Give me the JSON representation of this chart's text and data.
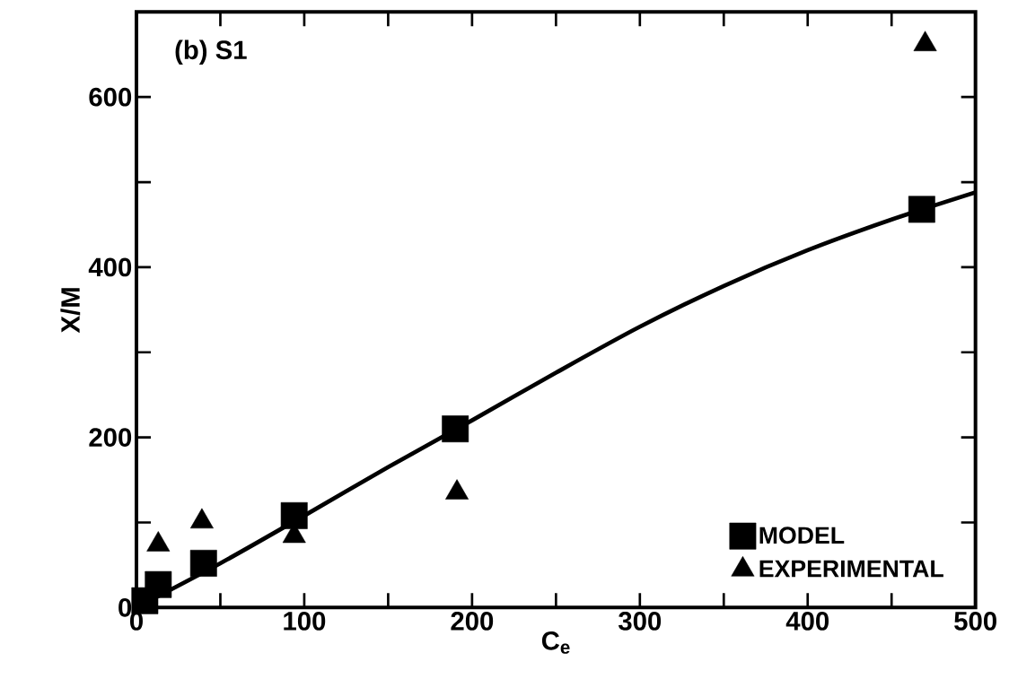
{
  "chart_data": {
    "type": "scatter",
    "title": "(b) S1",
    "xlabel": "C$_{e}$",
    "ylabel": "X/M",
    "xlim": [
      0,
      500
    ],
    "ylim": [
      0,
      700
    ],
    "xticks": [
      0,
      {
        "value": 50,
        "label": null
      },
      100,
      {
        "value": 150,
        "label": null
      },
      200,
      {
        "value": 250,
        "label": null
      },
      300,
      {
        "value": 350,
        "label": null
      },
      400,
      {
        "value": 450,
        "label": null
      },
      500
    ],
    "yticks": [
      0,
      {
        "value": 100,
        "label": null
      },
      200,
      {
        "value": 300,
        "label": null
      },
      400,
      {
        "value": 500,
        "label": null
      },
      600
    ],
    "grid": false,
    "legend": "bottom right",
    "series": [
      {
        "name": "MODEL",
        "color": "#000000",
        "marker": "square",
        "x": [
          5,
          13,
          40,
          94,
          190,
          468
        ],
        "values": [
          8,
          27,
          52,
          108,
          210,
          468
        ]
      },
      {
        "name": "EXPERIMENTAL",
        "color": "#000000",
        "marker": "triangle",
        "x": [
          13,
          39,
          94,
          191,
          470
        ],
        "values": [
          74,
          101,
          84,
          135,
          662
        ]
      },
      {
        "type": "line",
        "color": "#000000",
        "line_style": "solid",
        "marker": "none",
        "x": [
          0,
          50,
          100,
          150,
          200,
          250,
          300,
          350,
          400,
          450,
          500
        ],
        "values": [
          0,
          52,
          108,
          165,
          220,
          276,
          330,
          378,
          420,
          456,
          488
        ]
      }
    ]
  }
}
